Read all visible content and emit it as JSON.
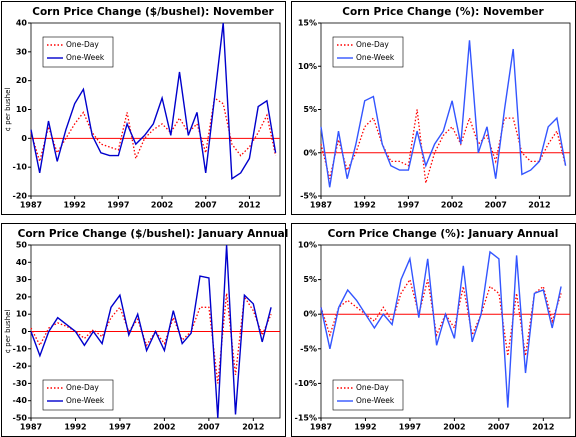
{
  "chart_data": [
    {
      "type": "line",
      "title": "Corn Price Change ($/bushel): November",
      "y_label": "¢ per bushel",
      "x": [
        1987,
        1988,
        1989,
        1990,
        1991,
        1992,
        1993,
        1994,
        1995,
        1996,
        1997,
        1998,
        1999,
        2000,
        2001,
        2002,
        2003,
        2004,
        2005,
        2006,
        2007,
        2008,
        2009,
        2010,
        2011,
        2012,
        2013,
        2014,
        2015
      ],
      "series": [
        {
          "name": "One-Day",
          "color": "#ff0000",
          "style": "dotted",
          "values": [
            2,
            -8,
            4,
            -5,
            0,
            5,
            9,
            2,
            -2,
            -3,
            -4,
            9,
            -7,
            0,
            3,
            5,
            2,
            7,
            2,
            5,
            -5,
            14,
            12,
            -2,
            -6,
            -3,
            2,
            8,
            -6
          ]
        },
        {
          "name": "One-Week",
          "color": "#0000cc",
          "style": "solid",
          "values": [
            3,
            -12,
            6,
            -8,
            3,
            12,
            17,
            1,
            -5,
            -6,
            -6,
            5,
            -2,
            1,
            5,
            14,
            1,
            23,
            1,
            9,
            -12,
            14,
            40,
            -14,
            -12,
            -7,
            11,
            13,
            -5
          ]
        }
      ],
      "xlim": [
        1987,
        2015.5
      ],
      "xticks": [
        1987,
        1992,
        1997,
        2002,
        2007,
        2012
      ],
      "ylim": [
        -20,
        40
      ],
      "yticks": [
        -20,
        -10,
        0,
        10,
        20,
        30,
        40
      ],
      "zero_line_color": "#ff0000",
      "legend": "upper left"
    },
    {
      "type": "line",
      "title": "Corn Price Change (%): November",
      "x": [
        1987,
        1988,
        1989,
        1990,
        1991,
        1992,
        1993,
        1994,
        1995,
        1996,
        1997,
        1998,
        1999,
        2000,
        2001,
        2002,
        2003,
        2004,
        2005,
        2006,
        2007,
        2008,
        2009,
        2010,
        2011,
        2012,
        2013,
        2014,
        2015
      ],
      "series": [
        {
          "name": "One-Day",
          "color": "#ff0000",
          "style": "dotted",
          "values": [
            1,
            -3,
            1.5,
            -2,
            0,
            3,
            4,
            1,
            -1,
            -1,
            -1.5,
            5,
            -3.5,
            0,
            2,
            3,
            1,
            4,
            1,
            2,
            -1,
            4,
            4,
            0,
            -1,
            -1,
            1,
            2.5,
            -1.5
          ]
        },
        {
          "name": "One-Week",
          "color": "#3355ff",
          "style": "solid",
          "values": [
            3,
            -4,
            2.5,
            -3,
            1,
            6,
            6.5,
            1,
            -1.5,
            -2,
            -2,
            2.5,
            -1.5,
            1,
            2.5,
            6,
            1,
            13,
            0,
            3,
            -3,
            5,
            12,
            -2.5,
            -2,
            -1,
            3,
            4,
            -1.5
          ]
        }
      ],
      "xlim": [
        1987,
        2015.5
      ],
      "xticks": [
        1987,
        1992,
        1997,
        2002,
        2007,
        2012
      ],
      "ylim": [
        -5,
        15
      ],
      "yticks": [
        {
          "value": -5,
          "label": "-5%"
        },
        {
          "value": 0,
          "label": "0%"
        },
        {
          "value": 5,
          "label": "5%"
        },
        {
          "value": 10,
          "label": "10%"
        },
        {
          "value": 15,
          "label": "15%"
        }
      ],
      "zero_line_color": "#ff0000",
      "legend": "upper left"
    },
    {
      "type": "line",
      "title": "Corn Price Change ($/bushel): January Annual",
      "y_label": "¢ per bushel",
      "x": [
        1987,
        1988,
        1989,
        1990,
        1991,
        1992,
        1993,
        1994,
        1995,
        1996,
        1997,
        1998,
        1999,
        2000,
        2001,
        2002,
        2003,
        2004,
        2005,
        2006,
        2007,
        2008,
        2009,
        2010,
        2011,
        2012,
        2013,
        2014
      ],
      "series": [
        {
          "name": "One-Day",
          "color": "#ff0000",
          "style": "dotted",
          "values": [
            2,
            -8,
            2,
            5,
            3,
            0,
            -4,
            1,
            -3,
            8,
            14,
            0,
            7,
            -8,
            0,
            -7,
            8,
            -5,
            0,
            14,
            14,
            -30,
            22,
            -25,
            20,
            12,
            -2,
            10
          ]
        },
        {
          "name": "One-Week",
          "color": "#0000cc",
          "style": "solid",
          "values": [
            0,
            -14,
            0,
            8,
            4,
            0,
            -8,
            0,
            -7,
            14,
            21,
            -2,
            10,
            -11,
            0,
            -11,
            12,
            -7,
            -1,
            32,
            31,
            -50,
            50,
            -48,
            21,
            16,
            -6,
            14
          ]
        }
      ],
      "xlim": [
        1987,
        2015
      ],
      "xticks": [
        1987,
        1992,
        1997,
        2002,
        2007,
        2012
      ],
      "ylim": [
        -50,
        50
      ],
      "yticks": [
        -50,
        -40,
        -30,
        -20,
        -10,
        0,
        10,
        20,
        30,
        40,
        50
      ],
      "zero_line_color": "#ff0000",
      "legend": "lower left"
    },
    {
      "type": "line",
      "title": "Corn Price Change (%): January Annual",
      "x": [
        1987,
        1988,
        1989,
        1990,
        1991,
        1992,
        1993,
        1994,
        1995,
        1996,
        1997,
        1998,
        1999,
        2000,
        2001,
        2002,
        2003,
        2004,
        2005,
        2006,
        2007,
        2008,
        2009,
        2010,
        2011,
        2012,
        2013,
        2014
      ],
      "series": [
        {
          "name": "One-Day",
          "color": "#ff0000",
          "style": "dotted",
          "values": [
            1,
            -3,
            1,
            2,
            1,
            0,
            -1,
            1,
            -1,
            3,
            5,
            0,
            5,
            -3,
            0,
            -2,
            4,
            -3,
            0,
            4,
            3,
            -6,
            3,
            -6,
            3,
            4,
            -1,
            3
          ]
        },
        {
          "name": "One-Week",
          "color": "#3355ff",
          "style": "solid",
          "values": [
            1,
            -5,
            1,
            3.5,
            2,
            0,
            -2,
            0,
            -1.5,
            5,
            8,
            -0.5,
            8,
            -4.5,
            0,
            -3.5,
            7,
            -4,
            0,
            9,
            8,
            -13.5,
            8.5,
            -8.5,
            3,
            3.5,
            -2,
            4
          ]
        }
      ],
      "xlim": [
        1987,
        2015
      ],
      "xticks": [
        1987,
        1992,
        1997,
        2002,
        2007,
        2012
      ],
      "ylim": [
        -15,
        10
      ],
      "yticks": [
        {
          "value": -15,
          "label": "-15%"
        },
        {
          "value": -10,
          "label": "-10%"
        },
        {
          "value": -5,
          "label": "-5%"
        },
        {
          "value": 0,
          "label": "0%"
        },
        {
          "value": 5,
          "label": "5%"
        },
        {
          "value": 10,
          "label": "10%"
        }
      ],
      "zero_line_color": "#ff0000",
      "legend": "lower left"
    }
  ]
}
